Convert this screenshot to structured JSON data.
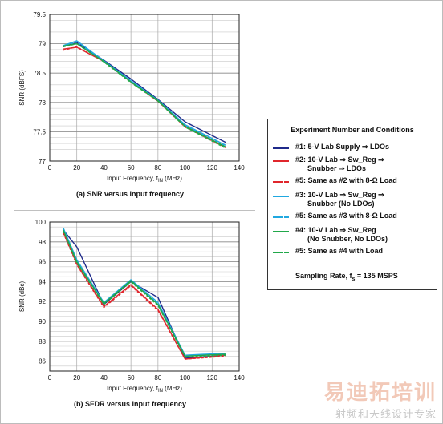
{
  "chart_data": [
    {
      "type": "line",
      "caption": "(a) SNR versus input frequency",
      "xlabel": "Input Frequency, f",
      "xlabel_sub": "IN",
      "xlabel_unit": " (MHz)",
      "ylabel": "SNR (dBFS)",
      "xlim": [
        0,
        140
      ],
      "ylim": [
        77,
        79.5
      ],
      "xticks": [
        0,
        20,
        40,
        60,
        80,
        100,
        120,
        140
      ],
      "yticks": [
        77,
        77.5,
        78,
        78.5,
        79,
        79.5
      ],
      "yminor_step": 0.1,
      "grid": true,
      "series": [
        {
          "color": "#1f2a8a",
          "dash": false,
          "x": [
            10,
            20,
            40,
            60,
            80,
            100,
            130
          ],
          "values": [
            78.95,
            79.02,
            78.72,
            78.4,
            78.05,
            77.67,
            77.32
          ]
        },
        {
          "color": "#e0262c",
          "dash": false,
          "x": [
            10,
            20,
            40,
            60,
            80,
            100,
            130
          ],
          "values": [
            78.91,
            78.94,
            78.7,
            78.36,
            78.02,
            77.6,
            77.24
          ]
        },
        {
          "color": "#e0262c",
          "dash": true,
          "x": [
            10,
            20,
            40,
            60,
            80,
            100,
            130
          ],
          "values": [
            78.89,
            78.95,
            78.7,
            78.35,
            78.02,
            77.58,
            77.23
          ]
        },
        {
          "color": "#20a8e0",
          "dash": false,
          "x": [
            10,
            20,
            40,
            60,
            80,
            100,
            130
          ],
          "values": [
            78.97,
            79.05,
            78.71,
            78.37,
            78.04,
            77.62,
            77.27
          ]
        },
        {
          "color": "#20a8e0",
          "dash": true,
          "x": [
            10,
            20,
            40,
            60,
            80,
            100,
            130
          ],
          "values": [
            78.96,
            79.03,
            78.7,
            78.36,
            78.03,
            77.61,
            77.26
          ]
        },
        {
          "color": "#21a84a",
          "dash": false,
          "x": [
            10,
            20,
            40,
            60,
            80,
            100,
            130
          ],
          "values": [
            78.96,
            79.0,
            78.7,
            78.35,
            78.03,
            77.59,
            77.24
          ]
        },
        {
          "color": "#21a84a",
          "dash": true,
          "x": [
            10,
            20,
            40,
            60,
            80,
            100,
            130
          ],
          "values": [
            78.95,
            79.0,
            78.69,
            78.34,
            78.02,
            77.58,
            77.22
          ]
        }
      ]
    },
    {
      "type": "line",
      "caption": "(b) SFDR versus input frequency",
      "xlabel": "Input Frequency, f",
      "xlabel_sub": "IN",
      "xlabel_unit": " (MHz)",
      "ylabel": "SNR (dBc)",
      "xlim": [
        0,
        140
      ],
      "ylim": [
        85,
        100
      ],
      "xticks": [
        0,
        20,
        40,
        60,
        80,
        100,
        120,
        140
      ],
      "yticks": [
        86,
        88,
        90,
        92,
        94,
        96,
        98,
        100
      ],
      "yminor_step": 0.5,
      "grid": true,
      "series": [
        {
          "color": "#1f2a8a",
          "dash": false,
          "x": [
            10,
            20,
            40,
            60,
            80,
            100,
            130
          ],
          "values": [
            99.2,
            97.5,
            91.7,
            94.0,
            92.4,
            86.3,
            86.6
          ]
        },
        {
          "color": "#e0262c",
          "dash": false,
          "x": [
            10,
            20,
            40,
            60,
            80,
            100,
            130
          ],
          "values": [
            99.0,
            95.8,
            91.5,
            93.7,
            91.2,
            86.2,
            86.6
          ]
        },
        {
          "color": "#e0262c",
          "dash": true,
          "x": [
            10,
            20,
            40,
            60,
            80,
            100,
            130
          ],
          "values": [
            98.9,
            95.7,
            91.4,
            93.6,
            91.1,
            86.2,
            86.5
          ]
        },
        {
          "color": "#20a8e0",
          "dash": false,
          "x": [
            10,
            20,
            40,
            60,
            80,
            100,
            130
          ],
          "values": [
            99.4,
            96.2,
            91.9,
            94.2,
            91.9,
            86.6,
            86.8
          ]
        },
        {
          "color": "#20a8e0",
          "dash": true,
          "x": [
            10,
            20,
            40,
            60,
            80,
            100,
            130
          ],
          "values": [
            99.3,
            96.1,
            91.8,
            94.1,
            91.8,
            86.5,
            86.7
          ]
        },
        {
          "color": "#21a84a",
          "dash": false,
          "x": [
            10,
            20,
            40,
            60,
            80,
            100,
            130
          ],
          "values": [
            99.2,
            96.0,
            91.8,
            94.1,
            91.7,
            86.5,
            86.7
          ]
        },
        {
          "color": "#21a84a",
          "dash": true,
          "x": [
            10,
            20,
            40,
            60,
            80,
            100,
            130
          ],
          "values": [
            99.1,
            95.9,
            91.7,
            94.0,
            91.6,
            86.4,
            86.6
          ]
        }
      ]
    }
  ],
  "legend": {
    "title": "Experiment Number and Conditions",
    "items": [
      {
        "color": "#1f2a8a",
        "dash": false,
        "text": "#1: 5-V Lab Supply ⇒ LDOs"
      },
      {
        "color": "#e0262c",
        "dash": false,
        "text": "#2: 10-V Lab ⇒ Sw_Reg ⇒\n      Snubber ⇒ LDOs"
      },
      {
        "color": "#e0262c",
        "dash": true,
        "text": "#5: Same as #2 with 8-Ω Load"
      },
      {
        "color": "#20a8e0",
        "dash": false,
        "text": "#3: 10-V Lab ⇒ Sw_Reg ⇒\n      Snubber (No LDOs)"
      },
      {
        "color": "#20a8e0",
        "dash": true,
        "text": "#5: Same as #3 with 8-Ω Load"
      },
      {
        "color": "#21a84a",
        "dash": false,
        "text": "#4: 10-V Lab ⇒ Sw_Reg\n      (No Snubber, No LDOs)"
      },
      {
        "color": "#21a84a",
        "dash": true,
        "text": "#5: Same as #4 with Load"
      }
    ],
    "sampling_prefix": "Sampling Rate, f",
    "sampling_sub": "s",
    "sampling_suffix": " = 135 MSPS"
  },
  "watermark": {
    "main": "易迪拓培训",
    "sub": "射频和天线设计专家"
  }
}
